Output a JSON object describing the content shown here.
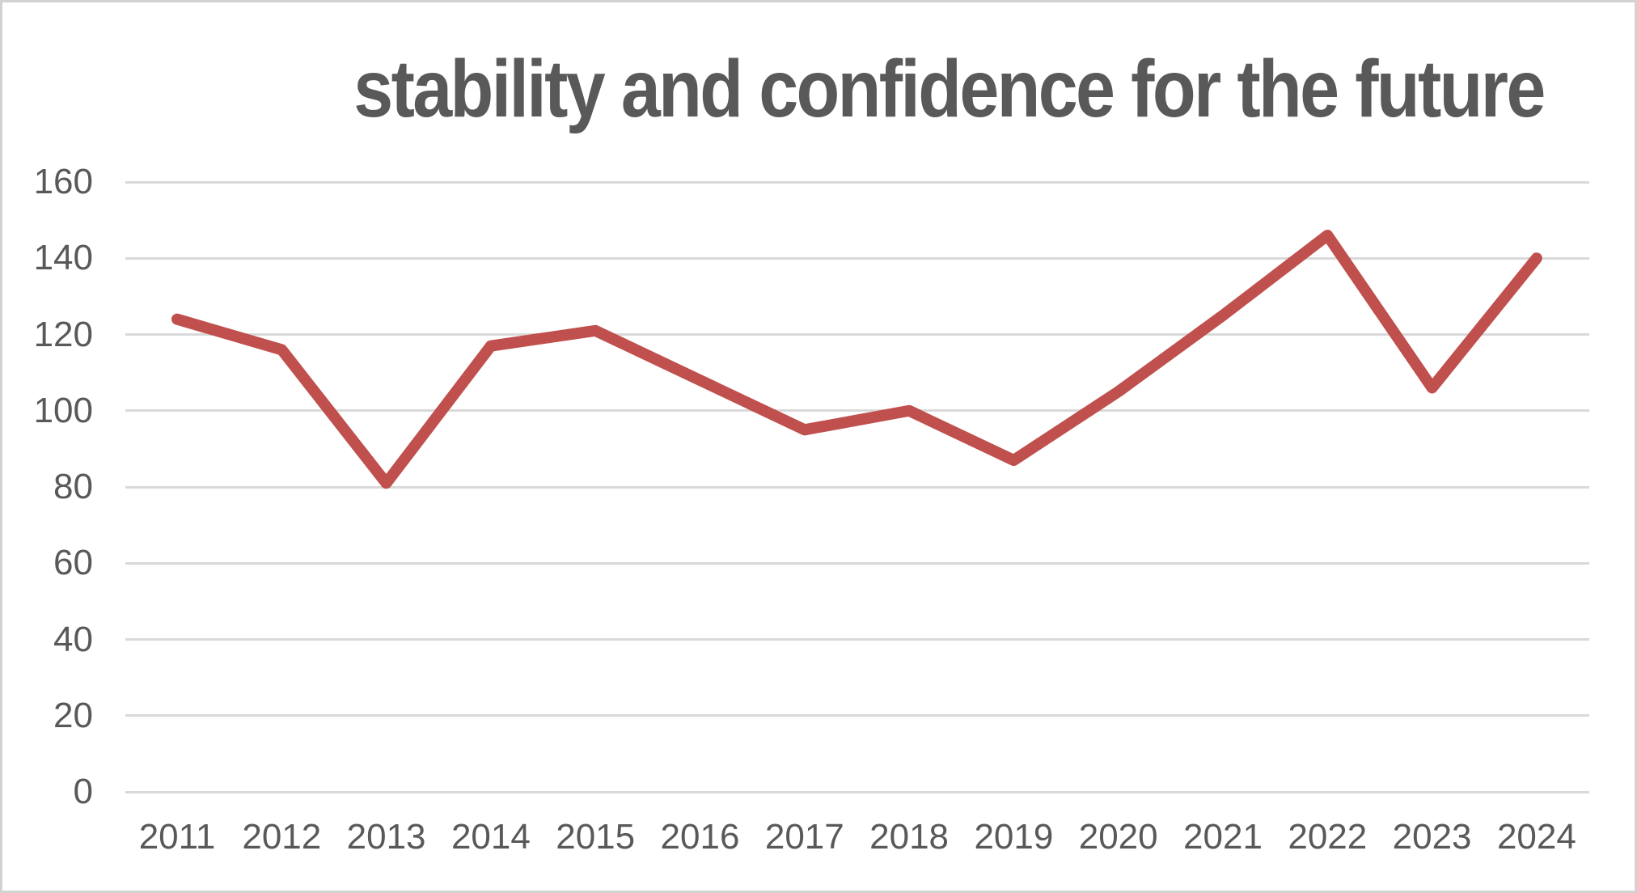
{
  "chart_data": {
    "type": "line",
    "title": "stability and confidence for the future",
    "categories": [
      "2011",
      "2012",
      "2013",
      "2014",
      "2015",
      "2016",
      "2017",
      "2018",
      "2019",
      "2020",
      "2021",
      "2022",
      "2023",
      "2024"
    ],
    "values": [
      124,
      116,
      81,
      117,
      121,
      108,
      95,
      100,
      87,
      105,
      125,
      146,
      106,
      140
    ],
    "xlabel": "",
    "ylabel": "",
    "ylim": [
      0,
      160
    ],
    "y_ticks": [
      0,
      20,
      40,
      60,
      80,
      100,
      120,
      140,
      160
    ],
    "grid": "horizontal",
    "legend": "none",
    "colors": {
      "line": "#C0504D",
      "title_text": "#595959",
      "axis_text": "#595959",
      "gridline": "#D9D9D9",
      "background": "#FFFFFF",
      "frame_border": "#D2D2D2"
    }
  }
}
